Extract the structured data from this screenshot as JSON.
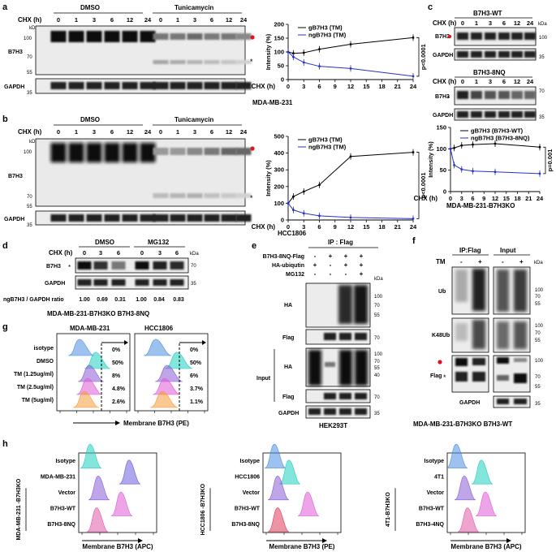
{
  "panels": {
    "a": {
      "label": "a",
      "groups": [
        "DMSO",
        "Tunicamycin"
      ],
      "row_header": "CHX (h)",
      "times": [
        "0",
        "1",
        "3",
        "6",
        "12",
        "24"
      ],
      "blots": [
        "B7H3",
        "GAPDH"
      ],
      "kda_label": "kDa",
      "markers": [
        "100",
        "70",
        "55",
        "35"
      ],
      "cell_line": "MDA-MB-231"
    },
    "b": {
      "label": "b",
      "groups": [
        "DMSO",
        "Tunicamycin"
      ],
      "row_header": "CHX (h)",
      "times": [
        "0",
        "1",
        "3",
        "6",
        "12",
        "24"
      ],
      "blots": [
        "B7H3",
        "GAPDH"
      ],
      "kda_label": "kDa",
      "markers": [
        "100",
        "70",
        "55",
        "35"
      ],
      "cell_line": "HCC1806"
    },
    "c": {
      "label": "c",
      "top_title": "B7H3-WT",
      "bottom_title": "B7H3-8NQ",
      "row_header": "CHX (h)",
      "times": [
        "0",
        "1",
        "3",
        "6",
        "12",
        "24"
      ],
      "blots": [
        "B7H3",
        "GAPDH"
      ],
      "kda_label": "kDa",
      "markers_top": [
        "100",
        "35"
      ],
      "markers_bottom": [
        "70",
        "35"
      ],
      "cell_line": "MDA-MB-231-B7H3KO"
    },
    "d": {
      "label": "d",
      "groups": [
        "DMSO",
        "MG132"
      ],
      "row_header": "CHX (h)",
      "times": [
        "0",
        "3",
        "6",
        "0",
        "3",
        "6"
      ],
      "blots": [
        "B7H3",
        "GAPDH"
      ],
      "kda_label": "kDa",
      "markers": [
        "70",
        "35"
      ],
      "ratio_label": "ngB7H3 / GAPDH  ratio",
      "ratios": [
        "1.00",
        "0.69",
        "0.31",
        "1.00",
        "0.84",
        "0.83"
      ],
      "cell_line": "MDA-MB-231-B7H3KO B7H3-8NQ"
    },
    "e": {
      "label": "e",
      "ip_title": "IP : Flag",
      "conditions": [
        {
          "name": "B7H3-8NQ-Flag",
          "signs": [
            "-",
            "+",
            "+",
            "+"
          ]
        },
        {
          "name": "HA-ubiqutin",
          "signs": [
            "+",
            "-",
            "+",
            "+"
          ]
        },
        {
          "name": "MG132",
          "signs": [
            "-",
            "-",
            "-",
            "+"
          ]
        }
      ],
      "blots_ip": [
        "HA",
        "Flag"
      ],
      "blots_input": [
        "HA",
        "Flag",
        "GAPDH"
      ],
      "input_label": "Input",
      "kda_label": "kDa",
      "markers_ip_ha": [
        "100",
        "70",
        "55"
      ],
      "markers_ip_flag": [
        "70"
      ],
      "markers_input_ha": [
        "100",
        "70",
        "55",
        "40"
      ],
      "markers_input_flag": [
        "70"
      ],
      "markers_input_gapdh": [
        "35"
      ],
      "cell_line": "HEK293T"
    },
    "f": {
      "label": "f",
      "ip_title": "IP:Flag",
      "input_title": "Input",
      "treatment": "TM",
      "signs": [
        "-",
        "+",
        "-",
        "+"
      ],
      "blots": [
        "Ub",
        "K48Ub",
        "Flag",
        "GAPDH"
      ],
      "kda_label": "kDa",
      "markers_ub": [
        "100",
        "70",
        "55"
      ],
      "markers_k48": [
        "100",
        "70",
        "55"
      ],
      "markers_flag": [
        "100",
        "70",
        "55"
      ],
      "markers_gapdh": [
        "35"
      ],
      "cell_line": "MDA-MB-231-B7H3KO B7H3-WT"
    },
    "g": {
      "label": "g",
      "titles": [
        "MDA-MB-231",
        "HCC1806"
      ],
      "rows": [
        "isotype",
        "DMSO",
        "TM (1.25ug/ml)",
        "TM (2.5ug/ml)",
        "TM (5ug/ml)"
      ],
      "pct_left": [
        "0%",
        "50%",
        "8%",
        "4.8%",
        "2.6%"
      ],
      "pct_right": [
        "0%",
        "50%",
        "6%",
        "3.7%",
        "1.1%"
      ],
      "xlabel": "Membrane B7H3 (PE)"
    },
    "h": {
      "label": "h",
      "sub1": {
        "rows": [
          "Isotype",
          "MDA-MB-231",
          "Vector",
          "B7H3-WT",
          "B7H3-8NQ"
        ],
        "group": "MDA-MB-231 -B7H3KO",
        "xlabel": "Membrane B7H3 (APC)"
      },
      "sub2": {
        "rows": [
          "Isotype",
          "HCC1806",
          "Vector",
          "B7H3-WT",
          "B7H3-8NQ"
        ],
        "group": "HCC1806 -B7H3KO",
        "xlabel": "Membrane B7H3 (PE)"
      },
      "sub3": {
        "rows": [
          "Isotype",
          "4T1",
          "Vector",
          "B7H3-WT",
          "B7H3-4NQ"
        ],
        "group": "4T1-B7H3KO",
        "xlabel": "Membrane B7H3 (APC)"
      }
    }
  },
  "chart_data": [
    {
      "type": "line",
      "panel": "a",
      "x": [
        0,
        1,
        3,
        6,
        12,
        24
      ],
      "series": [
        {
          "name": "gB7H3  (TM)",
          "values": [
            100,
            95,
            97,
            110,
            128,
            152
          ]
        },
        {
          "name": "ngB7H3  (TM)",
          "values": [
            100,
            82,
            62,
            48,
            40,
            12
          ]
        }
      ],
      "xlabel": "CHX (h)",
      "ylabel": "Intensity (%)",
      "ylim": [
        0,
        200
      ],
      "yticks": [
        0,
        50,
        100,
        150,
        200
      ],
      "xticks": [
        0,
        3,
        6,
        9,
        12,
        15,
        18,
        21,
        24
      ],
      "annotation": "p<0.0001",
      "legend": "top-left"
    },
    {
      "type": "line",
      "panel": "b",
      "x": [
        0,
        1,
        3,
        6,
        12,
        24
      ],
      "series": [
        {
          "name": "gB7H3  (TM)",
          "values": [
            100,
            140,
            170,
            210,
            380,
            405
          ]
        },
        {
          "name": "ngB7H3  (TM)",
          "values": [
            100,
            60,
            40,
            25,
            15,
            8
          ]
        }
      ],
      "xlabel": "CHX (h)",
      "ylabel": "Intensity (%)",
      "ylim": [
        0,
        500
      ],
      "yticks": [
        0,
        100,
        200,
        300,
        400,
        500
      ],
      "xticks": [
        0,
        3,
        6,
        9,
        12,
        15,
        18,
        21,
        24
      ],
      "annotation": "p<0.0001",
      "legend": "top-left"
    },
    {
      "type": "line",
      "panel": "c",
      "x": [
        0,
        1,
        3,
        6,
        12,
        24
      ],
      "series": [
        {
          "name": "gB7H3 (B7H3-WT)",
          "values": [
            100,
            102,
            108,
            110,
            112,
            104
          ]
        },
        {
          "name": "ngB7H3 (B7H3-8NQ)",
          "values": [
            100,
            62,
            52,
            48,
            46,
            42
          ]
        }
      ],
      "xlabel": "CHX (h)",
      "ylabel": "Intensity (%)",
      "ylim": [
        0,
        150
      ],
      "yticks": [
        0,
        50,
        100,
        150
      ],
      "xticks": [
        0,
        3,
        6,
        9,
        12,
        15,
        18,
        21,
        24
      ],
      "annotation": "p=0.001",
      "legend": "top-left"
    }
  ]
}
